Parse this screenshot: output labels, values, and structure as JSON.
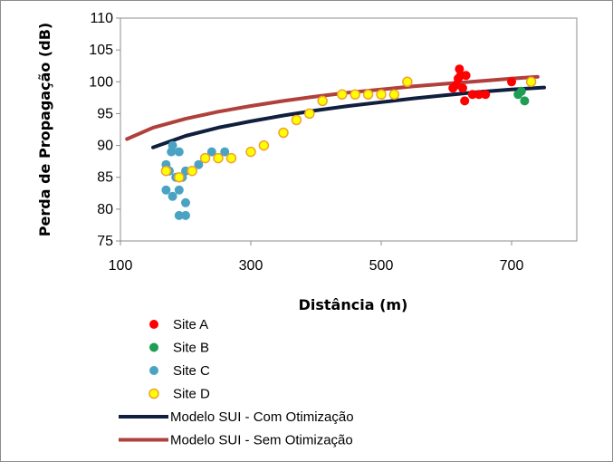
{
  "chart_data": {
    "type": "scatter",
    "title": "",
    "xlabel": "Distância (m)",
    "ylabel": "Perda de Propagação (dB)",
    "xlim": [
      100,
      800
    ],
    "ylim": [
      75,
      110
    ],
    "x_ticks": [
      100,
      300,
      500,
      700
    ],
    "y_ticks": [
      75,
      80,
      85,
      90,
      95,
      100,
      105,
      110
    ],
    "grid": false,
    "legend_position": "bottom-left",
    "series": [
      {
        "name": "Site A",
        "kind": "scatter",
        "color": "#ff0000",
        "points": [
          [
            610,
            99
          ],
          [
            615,
            99.5
          ],
          [
            620,
            102
          ],
          [
            622,
            101
          ],
          [
            618,
            100.5
          ],
          [
            625,
            99
          ],
          [
            628,
            97
          ],
          [
            630,
            101
          ],
          [
            640,
            98
          ],
          [
            650,
            98
          ],
          [
            660,
            98
          ],
          [
            700,
            100
          ]
        ]
      },
      {
        "name": "Site B",
        "kind": "scatter",
        "color": "#1f9d55",
        "points": [
          [
            710,
            98
          ],
          [
            715,
            98.5
          ],
          [
            720,
            97
          ],
          [
            730,
            100
          ]
        ]
      },
      {
        "name": "Site C",
        "kind": "scatter",
        "color": "#4aa3c2",
        "points": [
          [
            170,
            87
          ],
          [
            175,
            86
          ],
          [
            178,
            89
          ],
          [
            180,
            90
          ],
          [
            185,
            85
          ],
          [
            190,
            89
          ],
          [
            170,
            83
          ],
          [
            180,
            82
          ],
          [
            190,
            83
          ],
          [
            195,
            85
          ],
          [
            200,
            86
          ],
          [
            190,
            79
          ],
          [
            200,
            79
          ],
          [
            200,
            81
          ],
          [
            220,
            87
          ],
          [
            240,
            89
          ],
          [
            260,
            89
          ]
        ]
      },
      {
        "name": "Site D",
        "kind": "scatter",
        "color": "#ffff00",
        "edge_color": "#f0a030",
        "points": [
          [
            170,
            86
          ],
          [
            190,
            85
          ],
          [
            210,
            86
          ],
          [
            230,
            88
          ],
          [
            250,
            88
          ],
          [
            270,
            88
          ],
          [
            300,
            89
          ],
          [
            320,
            90
          ],
          [
            350,
            92
          ],
          [
            370,
            94
          ],
          [
            390,
            95
          ],
          [
            410,
            97
          ],
          [
            440,
            98
          ],
          [
            460,
            98
          ],
          [
            480,
            98
          ],
          [
            500,
            98
          ],
          [
            520,
            98
          ],
          [
            540,
            100
          ],
          [
            730,
            100
          ]
        ]
      },
      {
        "name": "Modelo SUI - Com Otimização",
        "kind": "line",
        "color": "#0f1f3d",
        "points": [
          [
            150,
            89.7
          ],
          [
            200,
            91.5
          ],
          [
            250,
            92.8
          ],
          [
            300,
            93.8
          ],
          [
            350,
            94.7
          ],
          [
            400,
            95.5
          ],
          [
            450,
            96.2
          ],
          [
            500,
            96.8
          ],
          [
            550,
            97.4
          ],
          [
            600,
            97.9
          ],
          [
            650,
            98.4
          ],
          [
            700,
            98.8
          ],
          [
            750,
            99.1
          ]
        ]
      },
      {
        "name": "Modelo SUI - Sem Otimização",
        "kind": "line",
        "color": "#b0403c",
        "points": [
          [
            110,
            91
          ],
          [
            150,
            92.8
          ],
          [
            200,
            94.2
          ],
          [
            250,
            95.3
          ],
          [
            300,
            96.2
          ],
          [
            350,
            97
          ],
          [
            400,
            97.7
          ],
          [
            450,
            98.3
          ],
          [
            500,
            98.8
          ],
          [
            550,
            99.3
          ],
          [
            600,
            99.7
          ],
          [
            650,
            100.1
          ],
          [
            700,
            100.5
          ],
          [
            740,
            100.8
          ]
        ]
      }
    ]
  }
}
